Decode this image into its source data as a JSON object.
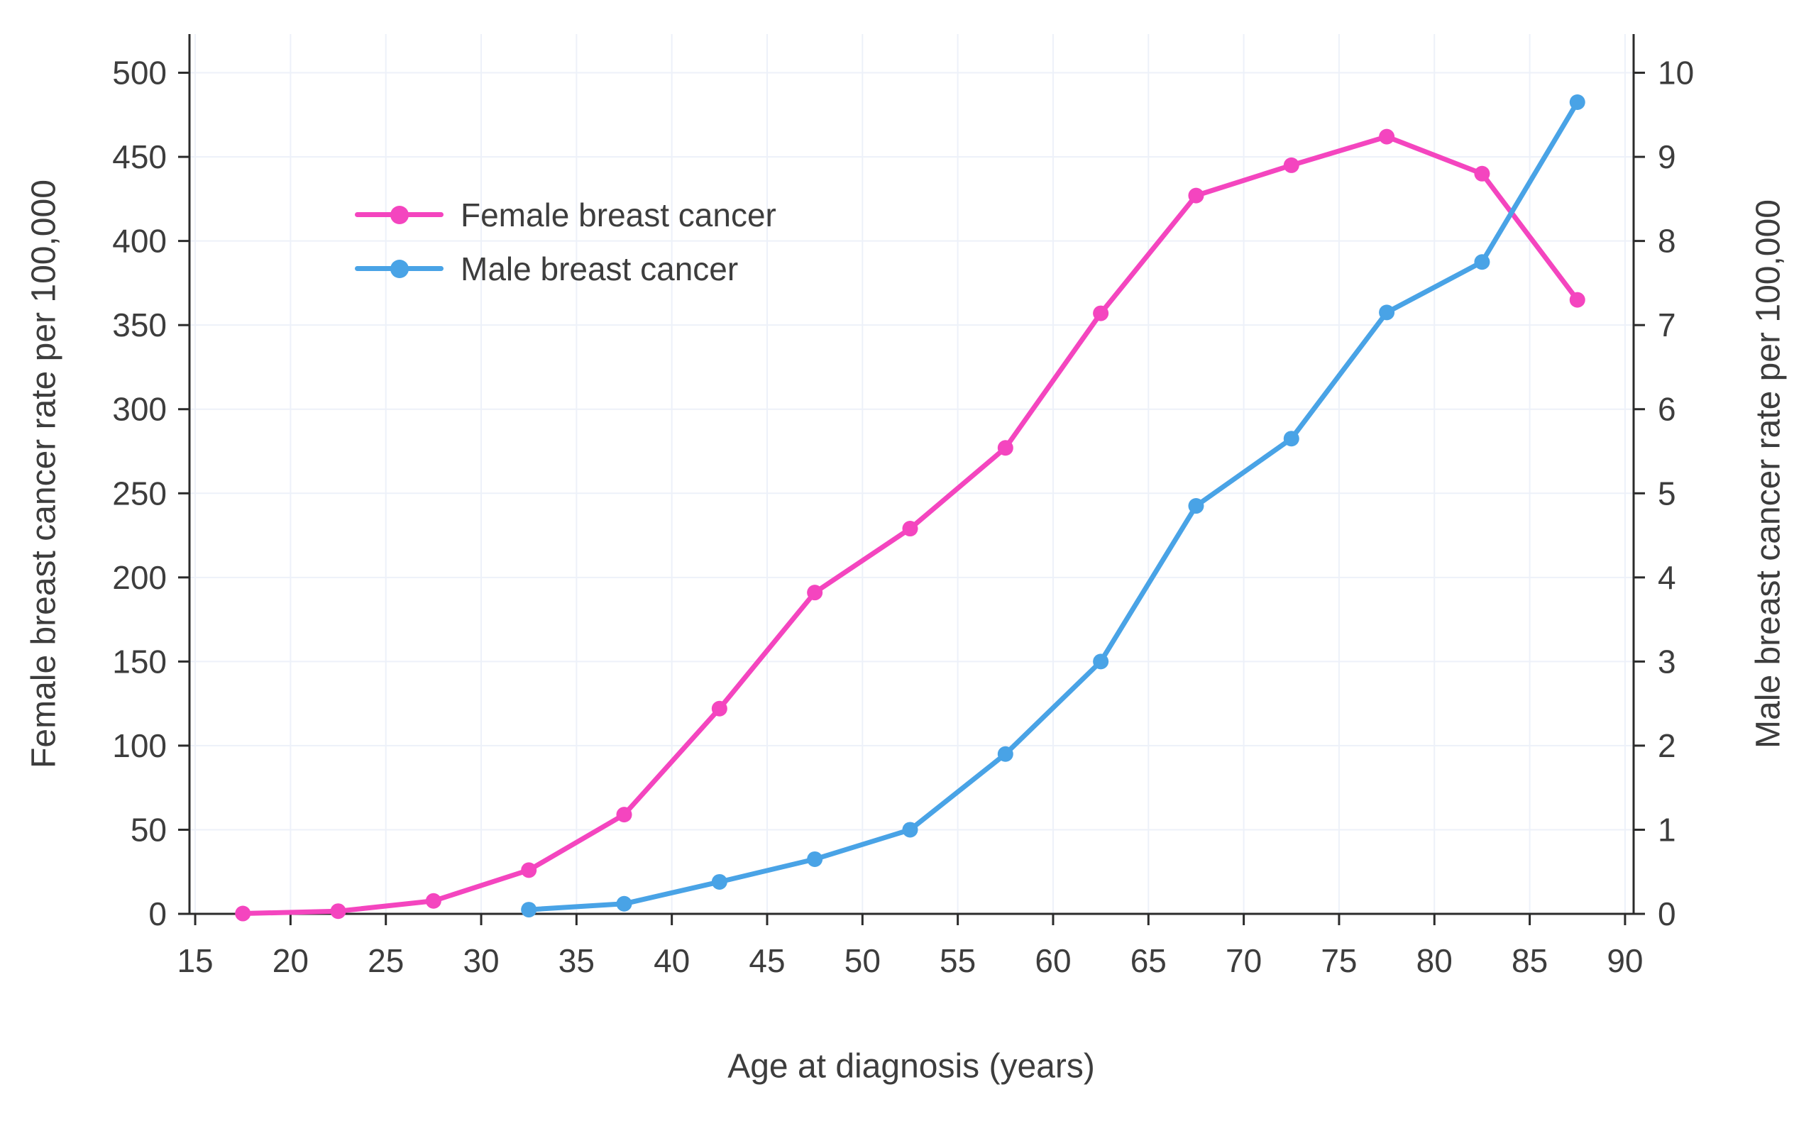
{
  "chart_data": {
    "type": "line",
    "title": "",
    "xlabel": "Age at diagnosis (years)",
    "ylabel_left": "Female breast cancer rate per 100,000",
    "ylabel_right": "Male breast cancer rate per 100,000",
    "x_ticks": [
      15,
      20,
      25,
      30,
      35,
      40,
      45,
      50,
      55,
      60,
      65,
      70,
      75,
      80,
      85,
      90
    ],
    "y_ticks_left": [
      0,
      50,
      100,
      150,
      200,
      250,
      300,
      350,
      400,
      450,
      500
    ],
    "y_ticks_right": [
      0,
      1,
      2,
      3,
      4,
      5,
      6,
      7,
      8,
      9,
      10
    ],
    "xlim": [
      14.7,
      90.45
    ],
    "ylim_left": [
      0,
      523
    ],
    "ylim_right": [
      0,
      10.46
    ],
    "grid": true,
    "legend_position": "upper-left-inside",
    "text_color": "#3d3d3d",
    "axis_color": "#2b2b2b",
    "grid_color": "#edf1f9",
    "series": [
      {
        "name": "Female breast cancer",
        "axis": "left",
        "color": "#f445bf",
        "x": [
          17.5,
          22.5,
          27.5,
          32.5,
          37.5,
          42.5,
          47.5,
          52.5,
          57.5,
          62.5,
          67.5,
          72.5,
          77.5,
          82.5,
          87.5
        ],
        "values": [
          0.2,
          1.6,
          7.7,
          26,
          59,
          122,
          191,
          229,
          277,
          357,
          427,
          445,
          462,
          440,
          365
        ]
      },
      {
        "name": "Male breast cancer",
        "axis": "right",
        "color": "#49a3e6",
        "x": [
          32.5,
          37.5,
          42.5,
          47.5,
          52.5,
          57.5,
          62.5,
          67.5,
          72.5,
          77.5,
          82.5,
          87.5
        ],
        "values": [
          0.05,
          0.12,
          0.38,
          0.65,
          1.0,
          1.9,
          3.0,
          4.85,
          5.65,
          7.15,
          7.75,
          9.65
        ]
      }
    ]
  }
}
